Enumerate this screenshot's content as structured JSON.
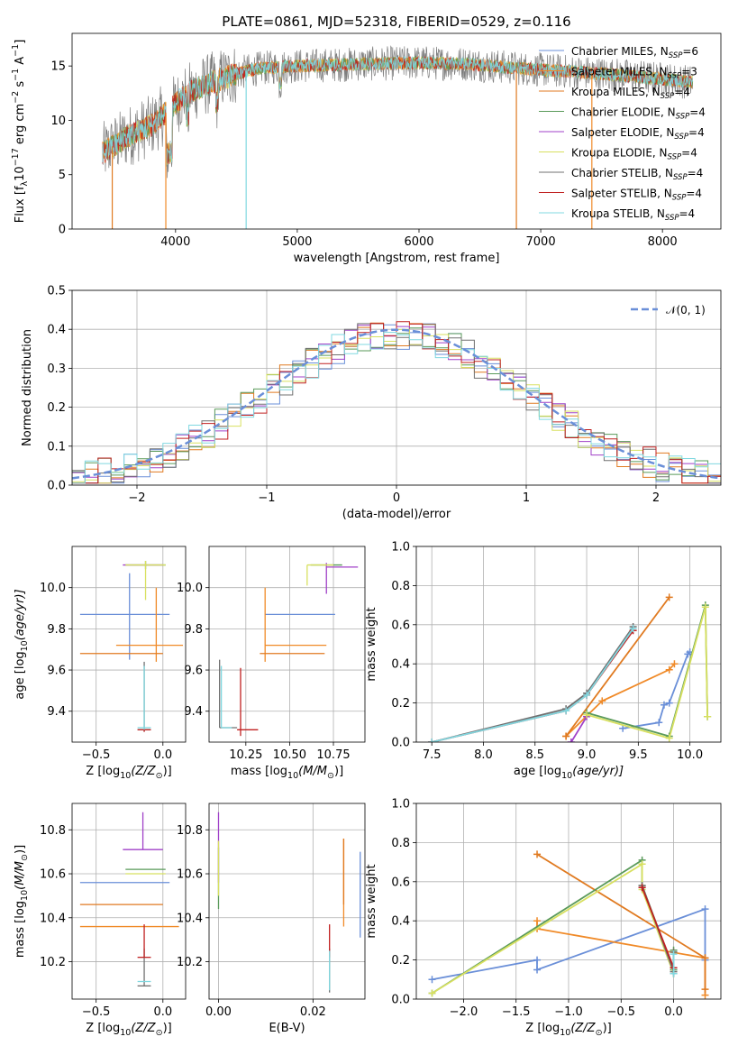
{
  "figure_title": "PLATE=0861, MJD=52318, FIBERID=0529, z=0.116",
  "colors": {
    "Chabrier MILES": "#6a8fd8",
    "Salpeter MILES": "#f08a28",
    "Kroupa MILES": "#e07a20",
    "Chabrier ELODIE": "#5a9a5a",
    "Salpeter ELODIE": "#a040c8",
    "Kroupa ELODIE": "#d8e060",
    "Chabrier STELIB": "#707070",
    "Salpeter STELIB": "#c02020",
    "Kroupa STELIB": "#80d8e0"
  },
  "chart_data": [
    {
      "id": "spectrum",
      "type": "line",
      "xlabel": "wavelength [Angstrom, rest frame]",
      "ylabel": "Flux [f_λ10^-17 erg cm^-2 s^-1 A^-1]",
      "xlim": [
        3150,
        8480
      ],
      "ylim": [
        0,
        18
      ],
      "xticks": [
        4000,
        5000,
        6000,
        7000,
        8000
      ],
      "yticks": [
        0,
        5,
        10,
        15
      ],
      "grid": false,
      "legend_position": "right",
      "legend": [
        {
          "name": "Chabrier MILES",
          "base": "Chabrier MILES, N",
          "sub": "SSP",
          "tail": "=6"
        },
        {
          "name": "Salpeter MILES",
          "base": "Salpeter MILES, N",
          "sub": "SSP",
          "tail": "=3"
        },
        {
          "name": "Kroupa MILES",
          "base": "Kroupa MILES, N",
          "sub": "SSP",
          "tail": "=4"
        },
        {
          "name": "Chabrier ELODIE",
          "base": "Chabrier ELODIE, N",
          "sub": "SSP",
          "tail": "=4"
        },
        {
          "name": "Salpeter ELODIE",
          "base": "Salpeter ELODIE, N",
          "sub": "SSP",
          "tail": "=4"
        },
        {
          "name": "Kroupa ELODIE",
          "base": "Kroupa ELODIE, N",
          "sub": "SSP",
          "tail": "=4"
        },
        {
          "name": "Chabrier STELIB",
          "base": "Chabrier STELIB, N",
          "sub": "SSP",
          "tail": "=4"
        },
        {
          "name": "Salpeter STELIB",
          "base": "Salpeter STELIB, N",
          "sub": "SSP",
          "tail": "=4"
        },
        {
          "name": "Kroupa STELIB",
          "base": "Kroupa STELIB, N",
          "sub": "SSP",
          "tail": "=4"
        }
      ],
      "continuum": [
        [
          3400,
          7.0
        ],
        [
          3600,
          8.5
        ],
        [
          3800,
          9.5
        ],
        [
          3950,
          11.0
        ],
        [
          4100,
          12.5
        ],
        [
          4300,
          13.5
        ],
        [
          4500,
          14.3
        ],
        [
          4700,
          14.8
        ],
        [
          5000,
          15.0
        ],
        [
          5300,
          15.1
        ],
        [
          5600,
          15.2
        ],
        [
          6000,
          15.3
        ],
        [
          6400,
          15.2
        ],
        [
          6800,
          14.8
        ],
        [
          7200,
          14.5
        ],
        [
          7600,
          14.2
        ],
        [
          8000,
          13.8
        ],
        [
          8250,
          13.5
        ]
      ],
      "drops": [
        {
          "x": 3480,
          "series": "Kroupa MILES"
        },
        {
          "x": 3920,
          "series": "Salpeter MILES"
        },
        {
          "x": 4580,
          "series": "Kroupa STELIB"
        },
        {
          "x": 6800,
          "series": "Kroupa MILES"
        },
        {
          "x": 7420,
          "series": "Salpeter MILES"
        }
      ]
    },
    {
      "id": "residuals",
      "type": "histogram",
      "xlabel": "(data-model)/error",
      "ylabel": "Normed distribution",
      "xlim": [
        -2.5,
        2.5
      ],
      "ylim": [
        0,
        0.5
      ],
      "xticks": [
        -2,
        -1,
        0,
        1,
        2
      ],
      "yticks": [
        0.0,
        0.1,
        0.2,
        0.3,
        0.4,
        0.5
      ],
      "grid": true,
      "legend_position": "top-right",
      "reference_curve": {
        "label": "𝒩(0, 1)",
        "mean": 0,
        "sigma": 1,
        "color": "#6a8fd8"
      }
    },
    {
      "id": "age_vs_Z",
      "type": "errorbar",
      "xlabel": "Z [log10(Z/Z☉)]",
      "ylabel": "age [log10(age/yr)]",
      "xlim": [
        -0.68,
        0.17
      ],
      "ylim": [
        9.25,
        10.2
      ],
      "xticks": [
        -0.5,
        0.0
      ],
      "yticks": [
        9.4,
        9.6,
        9.8,
        10.0
      ],
      "grid": true,
      "points": [
        {
          "series": "Chabrier MILES",
          "x": -0.25,
          "xerr": [
            0.37,
            0.3
          ],
          "y": 9.87,
          "yerr": [
            0.22,
            0.2
          ]
        },
        {
          "series": "Salpeter MILES",
          "x": -0.05,
          "xerr": [
            0.3,
            0.2
          ],
          "y": 9.72,
          "yerr": [
            0.08,
            0.28
          ]
        },
        {
          "series": "Kroupa MILES",
          "x": -0.3,
          "xerr": [
            0.32,
            0.3
          ],
          "y": 9.68,
          "yerr": [
            0.0,
            0.0
          ]
        },
        {
          "series": "Chabrier ELODIE",
          "x": -0.13,
          "xerr": [
            0.15,
            0.15
          ],
          "y": 10.11,
          "yerr": [
            0.02,
            0.02
          ]
        },
        {
          "series": "Salpeter ELODIE",
          "x": -0.15,
          "xerr": [
            0.15,
            0.15
          ],
          "y": 10.11,
          "yerr": [
            0.0,
            0.0
          ]
        },
        {
          "series": "Kroupa ELODIE",
          "x": -0.13,
          "xerr": [
            0.15,
            0.15
          ],
          "y": 10.11,
          "yerr": [
            0.17,
            0.02
          ]
        },
        {
          "series": "Chabrier STELIB",
          "x": -0.14,
          "xerr": [
            0.05,
            0.05
          ],
          "y": 9.31,
          "yerr": [
            0.01,
            0.33
          ]
        },
        {
          "series": "Salpeter STELIB",
          "x": -0.14,
          "xerr": [
            0.05,
            0.05
          ],
          "y": 9.31,
          "yerr": [
            0.01,
            0.0
          ]
        },
        {
          "series": "Kroupa STELIB",
          "x": -0.14,
          "xerr": [
            0.05,
            0.05
          ],
          "y": 9.32,
          "yerr": [
            0.01,
            0.3
          ]
        }
      ]
    },
    {
      "id": "age_vs_mass",
      "type": "errorbar",
      "xlabel": "mass [log10(M/M☉)]",
      "ylabel": "",
      "xlim": [
        10.04,
        10.93
      ],
      "ylim": [
        9.25,
        10.2
      ],
      "xticks": [
        10.25,
        10.5,
        10.75
      ],
      "yticks": [
        9.4,
        9.6,
        9.8,
        10.0
      ],
      "grid": true,
      "points": [
        {
          "series": "Chabrier MILES",
          "x": 10.56,
          "xerr": [
            0.2,
            0.2
          ],
          "y": 9.87,
          "yerr": [
            0.0,
            0.0
          ]
        },
        {
          "series": "Salpeter MILES",
          "x": 10.36,
          "xerr": [
            0.0,
            0.35
          ],
          "y": 9.72,
          "yerr": [
            0.08,
            0.28
          ]
        },
        {
          "series": "Kroupa MILES",
          "x": 10.46,
          "xerr": [
            0.13,
            0.24
          ],
          "y": 9.68,
          "yerr": [
            0.0,
            0.0
          ]
        },
        {
          "series": "Chabrier ELODIE",
          "x": 10.62,
          "xerr": [
            0.0,
            0.18
          ],
          "y": 10.11,
          "yerr": [
            0.0,
            0.0
          ]
        },
        {
          "series": "Salpeter ELODIE",
          "x": 10.71,
          "xerr": [
            0.0,
            0.18
          ],
          "y": 10.1,
          "yerr": [
            0.13,
            0.02
          ]
        },
        {
          "series": "Kroupa ELODIE",
          "x": 10.6,
          "xerr": [
            0.0,
            0.15
          ],
          "y": 10.11,
          "yerr": [
            0.1,
            0.0
          ]
        },
        {
          "series": "Chabrier STELIB",
          "x": 10.1,
          "xerr": [
            0.0,
            0.1
          ],
          "y": 9.32,
          "yerr": [
            0.0,
            0.33
          ]
        },
        {
          "series": "Salpeter STELIB",
          "x": 10.22,
          "xerr": [
            0.02,
            0.1
          ],
          "y": 9.31,
          "yerr": [
            0.03,
            0.3
          ]
        },
        {
          "series": "Kroupa STELIB",
          "x": 10.11,
          "xerr": [
            0.0,
            0.06
          ],
          "y": 9.32,
          "yerr": [
            0.0,
            0.3
          ]
        }
      ]
    },
    {
      "id": "massweight_vs_age",
      "type": "line",
      "xlabel": "age [log10(age/yr)]",
      "ylabel": "mass weight",
      "xlim": [
        7.35,
        10.3
      ],
      "ylim": [
        0,
        1.0
      ],
      "xticks": [
        7.5,
        8.0,
        8.5,
        9.0,
        9.5,
        10.0
      ],
      "yticks": [
        0.0,
        0.2,
        0.4,
        0.6,
        0.8,
        1.0
      ],
      "grid": true,
      "series": [
        {
          "name": "Chabrier MILES",
          "x": [
            9.35,
            9.7,
            9.75,
            9.8,
            9.98,
            10.0
          ],
          "y": [
            0.07,
            0.1,
            0.19,
            0.2,
            0.45,
            0.46
          ]
        },
        {
          "name": "Salpeter MILES",
          "x": [
            8.8,
            9.15,
            9.8,
            9.85
          ],
          "y": [
            0.03,
            0.21,
            0.37,
            0.4
          ]
        },
        {
          "name": "Kroupa MILES",
          "x": [
            8.8,
            9.8
          ],
          "y": [
            0.03,
            0.74
          ]
        },
        {
          "name": "Chabrier ELODIE",
          "x": [
            9.0,
            9.8,
            10.15,
            10.17
          ],
          "y": [
            0.15,
            0.03,
            0.7,
            0.13
          ]
        },
        {
          "name": "Salpeter ELODIE",
          "x": [
            8.85,
            9.0
          ],
          "y": [
            0.0,
            0.13
          ]
        },
        {
          "name": "Kroupa ELODIE",
          "x": [
            9.0,
            9.8,
            10.15,
            10.17
          ],
          "y": [
            0.14,
            0.02,
            0.69,
            0.13
          ]
        },
        {
          "name": "Chabrier STELIB",
          "x": [
            7.5,
            8.8,
            9.0,
            9.45
          ],
          "y": [
            0.0,
            0.17,
            0.25,
            0.59
          ]
        },
        {
          "name": "Salpeter STELIB",
          "x": [
            7.5,
            8.8,
            9.0,
            9.45
          ],
          "y": [
            0.0,
            0.16,
            0.24,
            0.57
          ]
        },
        {
          "name": "Kroupa STELIB",
          "x": [
            7.5,
            8.8,
            9.0,
            9.45
          ],
          "y": [
            0.0,
            0.16,
            0.24,
            0.58
          ]
        }
      ]
    },
    {
      "id": "mass_vs_Z",
      "type": "errorbar",
      "xlabel": "Z [log10(Z/Z☉)]",
      "ylabel": "mass [log10(M/M☉)]",
      "xlim": [
        -0.68,
        0.17
      ],
      "ylim": [
        10.03,
        10.92
      ],
      "xticks": [
        -0.5,
        0.0
      ],
      "yticks": [
        10.2,
        10.4,
        10.6,
        10.8
      ],
      "grid": true,
      "points": [
        {
          "series": "Chabrier MILES",
          "x": -0.25,
          "xerr": [
            0.37,
            0.3
          ],
          "y": 10.56,
          "yerr": [
            0.0,
            0.0
          ]
        },
        {
          "series": "Salpeter MILES",
          "x": -0.25,
          "xerr": [
            0.37,
            0.37
          ],
          "y": 10.36,
          "yerr": [
            0.0,
            0.0
          ]
        },
        {
          "series": "Kroupa MILES",
          "x": -0.3,
          "xerr": [
            0.32,
            0.3
          ],
          "y": 10.46,
          "yerr": [
            0.0,
            0.0
          ]
        },
        {
          "series": "Chabrier ELODIE",
          "x": -0.13,
          "xerr": [
            0.15,
            0.15
          ],
          "y": 10.62,
          "yerr": [
            0.0,
            0.0
          ]
        },
        {
          "series": "Salpeter ELODIE",
          "x": -0.15,
          "xerr": [
            0.15,
            0.15
          ],
          "y": 10.71,
          "yerr": [
            0.0,
            0.17
          ]
        },
        {
          "series": "Kroupa ELODIE",
          "x": -0.13,
          "xerr": [
            0.15,
            0.15
          ],
          "y": 10.6,
          "yerr": [
            0.0,
            0.0
          ]
        },
        {
          "series": "Chabrier STELIB",
          "x": -0.14,
          "xerr": [
            0.05,
            0.05
          ],
          "y": 10.09,
          "yerr": [
            0.0,
            0.17
          ]
        },
        {
          "series": "Salpeter STELIB",
          "x": -0.14,
          "xerr": [
            0.05,
            0.05
          ],
          "y": 10.22,
          "yerr": [
            0.0,
            0.15
          ]
        },
        {
          "series": "Kroupa STELIB",
          "x": -0.14,
          "xerr": [
            0.05,
            0.05
          ],
          "y": 10.11,
          "yerr": [
            0.0,
            0.0
          ]
        }
      ]
    },
    {
      "id": "mass_vs_ebv",
      "type": "errorbar",
      "xlabel": "E(B-V)",
      "ylabel": "",
      "xlim": [
        -0.002,
        0.031
      ],
      "ylim": [
        10.03,
        10.92
      ],
      "xticks": [
        0.0,
        0.02
      ],
      "yticks": [
        10.2,
        10.4,
        10.6,
        10.8
      ],
      "grid": true,
      "points": [
        {
          "series": "Chabrier MILES",
          "x": 0.03,
          "y": 10.56,
          "yerr": [
            0.25,
            0.14
          ]
        },
        {
          "series": "Salpeter MILES",
          "x": 0.0265,
          "y": 10.36,
          "yerr": [
            0.0,
            0.4
          ]
        },
        {
          "series": "Kroupa MILES",
          "x": 0.0265,
          "y": 10.46,
          "yerr": [
            0.0,
            0.3
          ]
        },
        {
          "series": "Chabrier ELODIE",
          "x": 0.0,
          "y": 10.62,
          "yerr": [
            0.18,
            0.1
          ]
        },
        {
          "series": "Salpeter ELODIE",
          "x": 0.0,
          "y": 10.71,
          "yerr": [
            0.15,
            0.17
          ]
        },
        {
          "series": "Kroupa ELODIE",
          "x": 0.0,
          "y": 10.6,
          "yerr": [
            0.1,
            0.15
          ]
        },
        {
          "series": "Chabrier STELIB",
          "x": 0.0235,
          "y": 10.09,
          "yerr": [
            0.03,
            0.17
          ]
        },
        {
          "series": "Salpeter STELIB",
          "x": 0.0235,
          "y": 10.22,
          "yerr": [
            0.0,
            0.15
          ]
        },
        {
          "series": "Kroupa STELIB",
          "x": 0.0235,
          "y": 10.11,
          "yerr": [
            0.04,
            0.14
          ]
        }
      ]
    },
    {
      "id": "massweight_vs_Z",
      "type": "line",
      "xlabel": "Z [log10(Z/Z☉)]",
      "ylabel": "mass weight",
      "xlim": [
        -2.45,
        0.45
      ],
      "ylim": [
        0,
        1.0
      ],
      "xticks": [
        -2.0,
        -1.5,
        -1.0,
        -0.5,
        0.0
      ],
      "yticks": [
        0.0,
        0.2,
        0.4,
        0.6,
        0.8,
        1.0
      ],
      "grid": true,
      "series": [
        {
          "name": "Chabrier MILES",
          "x": [
            -2.3,
            -1.3,
            -1.3,
            0.3,
            0.3
          ],
          "y": [
            0.1,
            0.2,
            0.15,
            0.46,
            0.2
          ]
        },
        {
          "name": "Salpeter MILES",
          "x": [
            -1.3,
            -1.3,
            0.3,
            0.3
          ],
          "y": [
            0.4,
            0.36,
            0.21,
            0.02
          ]
        },
        {
          "name": "Kroupa MILES",
          "x": [
            -1.3,
            0.3,
            0.3
          ],
          "y": [
            0.74,
            0.21,
            0.05
          ]
        },
        {
          "name": "Chabrier ELODIE",
          "x": [
            -2.3,
            -0.3,
            -0.3,
            0.0,
            0.0
          ],
          "y": [
            0.03,
            0.71,
            0.58,
            0.15,
            0.25
          ]
        },
        {
          "name": "Salpeter ELODIE",
          "x": [
            -0.3,
            0.0
          ],
          "y": [
            0.57,
            0.13
          ]
        },
        {
          "name": "Kroupa ELODIE",
          "x": [
            -2.3,
            -0.3,
            -0.3,
            0.0,
            0.0
          ],
          "y": [
            0.03,
            0.69,
            0.56,
            0.13,
            0.24
          ]
        },
        {
          "name": "Chabrier STELIB",
          "x": [
            -0.3,
            0.0,
            0.0
          ],
          "y": [
            0.58,
            0.14,
            0.24
          ]
        },
        {
          "name": "Salpeter STELIB",
          "x": [
            -0.3,
            0.0
          ],
          "y": [
            0.57,
            0.16
          ]
        },
        {
          "name": "Kroupa STELIB",
          "x": [
            0.0,
            0.0
          ],
          "y": [
            0.13,
            0.23
          ]
        }
      ]
    }
  ]
}
